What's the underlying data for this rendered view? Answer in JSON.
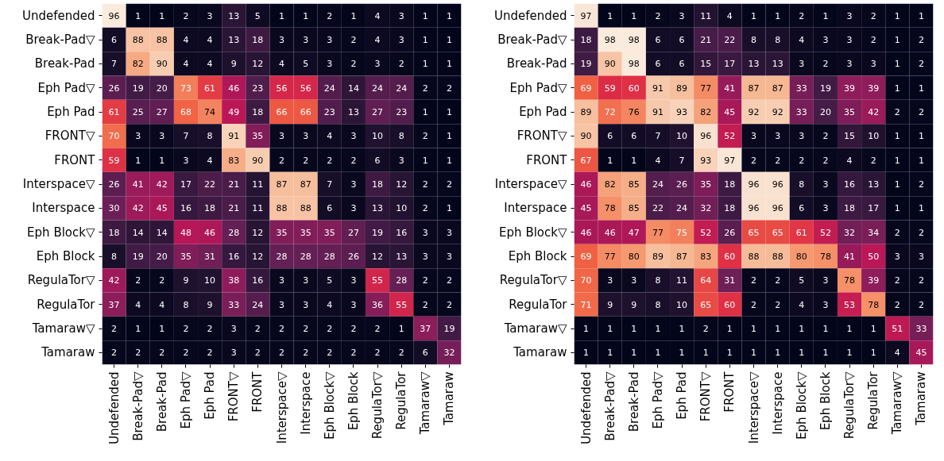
{
  "chart_data": [
    {
      "type": "heatmap",
      "data_labels": true,
      "categories": [
        "Undefended",
        "Break-Pad▽",
        "Break-Pad",
        "Eph Pad▽",
        "Eph Pad",
        "FRONT▽",
        "FRONT",
        "Interspace▽",
        "Interspace",
        "Eph Block▽",
        "Eph Block",
        "RegulaTor▽",
        "RegulaTor",
        "Tamaraw▽",
        "Tamaraw"
      ],
      "y_categories": [
        "Undefended",
        "Break-Pad▽",
        "Break-Pad",
        "Eph Pad▽",
        "Eph Pad",
        "FRONT▽",
        "FRONT",
        "Interspace▽",
        "Interspace",
        "Eph Block▽",
        "Eph Block",
        "RegulaTor▽",
        "RegulaTor",
        "Tamaraw▽",
        "Tamaraw"
      ],
      "cells": [
        [
          96,
          1,
          1,
          2,
          3,
          13,
          5,
          1,
          1,
          2,
          1,
          4,
          3,
          1,
          1
        ],
        [
          6,
          88,
          88,
          4,
          4,
          13,
          18,
          3,
          3,
          3,
          2,
          4,
          3,
          1,
          1
        ],
        [
          7,
          82,
          90,
          4,
          4,
          9,
          12,
          4,
          5,
          3,
          2,
          3,
          2,
          1,
          1
        ],
        [
          26,
          19,
          20,
          73,
          61,
          46,
          23,
          56,
          56,
          24,
          14,
          24,
          24,
          2,
          2
        ],
        [
          61,
          25,
          27,
          68,
          74,
          49,
          18,
          66,
          66,
          23,
          13,
          27,
          23,
          1,
          1
        ],
        [
          70,
          3,
          3,
          7,
          8,
          91,
          35,
          3,
          3,
          4,
          3,
          10,
          8,
          2,
          1
        ],
        [
          59,
          1,
          1,
          3,
          4,
          83,
          90,
          2,
          2,
          2,
          2,
          6,
          3,
          1,
          1
        ],
        [
          26,
          41,
          42,
          17,
          22,
          21,
          11,
          87,
          87,
          7,
          3,
          18,
          12,
          2,
          2
        ],
        [
          30,
          42,
          45,
          16,
          18,
          21,
          11,
          88,
          88,
          6,
          3,
          13,
          10,
          2,
          1
        ],
        [
          18,
          14,
          14,
          48,
          46,
          28,
          12,
          35,
          35,
          35,
          27,
          19,
          16,
          3,
          3
        ],
        [
          8,
          19,
          20,
          35,
          31,
          16,
          12,
          28,
          28,
          28,
          26,
          12,
          13,
          3,
          3
        ],
        [
          42,
          2,
          2,
          9,
          10,
          38,
          16,
          3,
          3,
          5,
          3,
          55,
          28,
          2,
          2
        ],
        [
          37,
          4,
          4,
          8,
          9,
          33,
          24,
          3,
          3,
          4,
          3,
          36,
          55,
          2,
          2
        ],
        [
          2,
          1,
          1,
          2,
          2,
          3,
          2,
          2,
          2,
          2,
          2,
          2,
          1,
          37,
          19
        ],
        [
          2,
          2,
          2,
          2,
          2,
          3,
          2,
          2,
          2,
          2,
          2,
          2,
          2,
          6,
          32
        ]
      ]
    },
    {
      "type": "heatmap",
      "data_labels": true,
      "categories": [
        "Undefended",
        "Break-Pad▽",
        "Break-Pad",
        "Eph Pad▽",
        "Eph Pad",
        "FRONT▽",
        "FRONT",
        "Interspace▽",
        "Interspace",
        "Eph Block▽",
        "Eph Block",
        "RegulaTor▽",
        "RegulaTor",
        "Tamaraw▽",
        "Tamaraw"
      ],
      "y_categories": [
        "Undefended",
        "Break-Pad▽",
        "Break-Pad",
        "Eph Pad▽",
        "Eph Pad",
        "FRONT▽",
        "FRONT",
        "Interspace▽",
        "Interspace",
        "Eph Block▽",
        "Eph Block",
        "RegulaTor▽",
        "RegulaTor",
        "Tamaraw▽",
        "Tamaraw"
      ],
      "cells": [
        [
          97,
          1,
          1,
          2,
          3,
          11,
          4,
          1,
          1,
          2,
          1,
          3,
          2,
          1,
          1
        ],
        [
          18,
          98,
          98,
          6,
          6,
          21,
          22,
          8,
          8,
          4,
          3,
          3,
          2,
          1,
          2
        ],
        [
          19,
          90,
          98,
          6,
          6,
          15,
          17,
          13,
          13,
          3,
          2,
          3,
          3,
          1,
          2
        ],
        [
          69,
          59,
          60,
          91,
          89,
          77,
          41,
          87,
          87,
          33,
          19,
          39,
          39,
          1,
          1
        ],
        [
          89,
          72,
          76,
          91,
          93,
          82,
          45,
          92,
          92,
          33,
          20,
          35,
          42,
          2,
          2
        ],
        [
          90,
          6,
          6,
          7,
          10,
          96,
          52,
          3,
          3,
          3,
          2,
          15,
          10,
          1,
          1
        ],
        [
          67,
          1,
          1,
          4,
          7,
          93,
          97,
          2,
          2,
          2,
          2,
          4,
          2,
          1,
          1
        ],
        [
          46,
          82,
          85,
          24,
          26,
          35,
          18,
          96,
          96,
          8,
          3,
          16,
          13,
          1,
          2
        ],
        [
          45,
          78,
          85,
          22,
          24,
          32,
          18,
          96,
          96,
          6,
          3,
          18,
          17,
          1,
          1
        ],
        [
          46,
          46,
          47,
          77,
          75,
          52,
          26,
          65,
          65,
          61,
          52,
          32,
          34,
          2,
          2
        ],
        [
          69,
          77,
          80,
          89,
          87,
          83,
          60,
          88,
          88,
          80,
          78,
          41,
          50,
          3,
          3
        ],
        [
          70,
          3,
          3,
          8,
          11,
          64,
          31,
          2,
          2,
          5,
          3,
          78,
          39,
          2,
          2
        ],
        [
          71,
          9,
          9,
          8,
          10,
          65,
          60,
          2,
          2,
          4,
          3,
          53,
          78,
          2,
          2
        ],
        [
          1,
          1,
          1,
          1,
          1,
          2,
          1,
          1,
          1,
          1,
          1,
          1,
          1,
          51,
          33
        ],
        [
          1,
          1,
          1,
          1,
          1,
          1,
          1,
          1,
          1,
          1,
          1,
          1,
          1,
          4,
          45
        ]
      ]
    }
  ]
}
